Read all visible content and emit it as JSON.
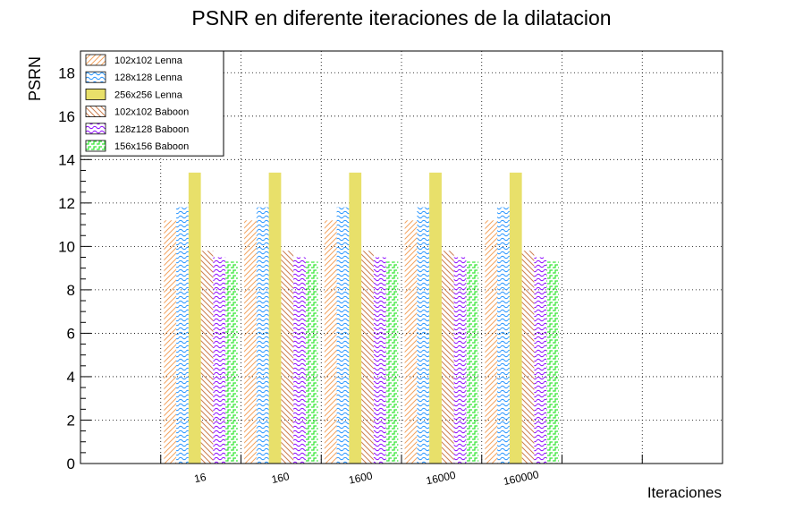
{
  "chart_data": {
    "type": "bar",
    "title": "PSNR en diferente iteraciones de la dilatacion",
    "xlabel": "Iteraciones",
    "ylabel": "PSRN",
    "ylim": [
      0,
      19
    ],
    "yticks": [
      0,
      2,
      4,
      6,
      8,
      10,
      12,
      14,
      16,
      18
    ],
    "categories": [
      "16",
      "160",
      "1600",
      "16000",
      "160000"
    ],
    "empty_slots_left": 1,
    "empty_slots_right": 2,
    "grid": true,
    "legend_position": "top-left",
    "series": [
      {
        "name": "102x102 Lenna",
        "color": "#f4a460",
        "pattern": "diag",
        "values": [
          11.2,
          11.2,
          11.2,
          11.2,
          11.2
        ]
      },
      {
        "name": "128x128 Lenna",
        "color": "#1e90ff",
        "pattern": "wave",
        "values": [
          11.8,
          11.8,
          11.8,
          11.8,
          11.8
        ]
      },
      {
        "name": "256x256 Lenna",
        "color": "#e8e06a",
        "pattern": "solid",
        "values": [
          13.4,
          13.4,
          13.4,
          13.4,
          13.4
        ]
      },
      {
        "name": "102x102 Baboon",
        "color": "#cd7f50",
        "pattern": "backdiag",
        "values": [
          9.8,
          9.8,
          9.8,
          9.8,
          9.8
        ]
      },
      {
        "name": "128z128 Baboon",
        "color": "#8b00ff",
        "pattern": "wave",
        "values": [
          9.5,
          9.5,
          9.5,
          9.5,
          9.5
        ]
      },
      {
        "name": "156x156 Baboon",
        "color": "#32e632",
        "pattern": "steps",
        "values": [
          9.3,
          9.3,
          9.3,
          9.3,
          9.3
        ]
      }
    ]
  }
}
